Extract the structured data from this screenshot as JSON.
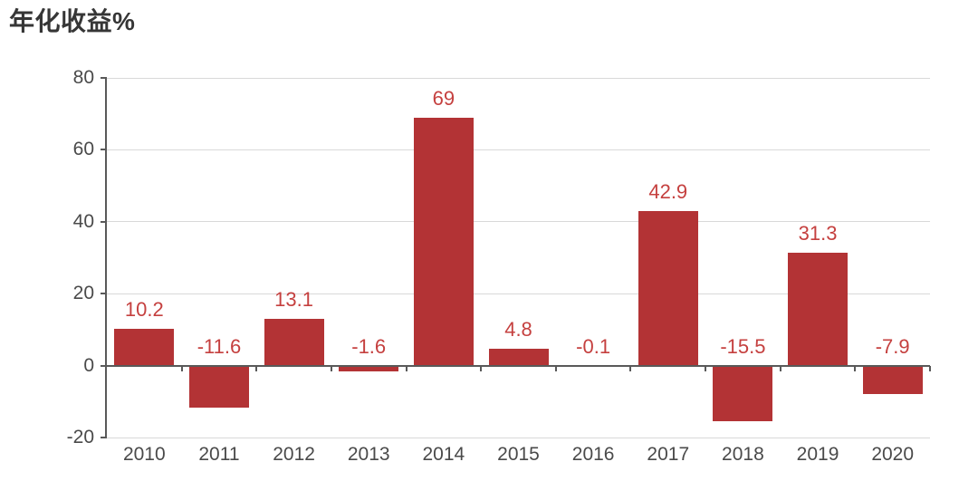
{
  "chart_data": {
    "type": "bar",
    "title": "年化收益%",
    "categories": [
      "2010",
      "2011",
      "2012",
      "2013",
      "2014",
      "2015",
      "2016",
      "2017",
      "2018",
      "2019",
      "2020"
    ],
    "values": [
      10.2,
      -11.6,
      13.1,
      -1.6,
      69,
      4.8,
      -0.1,
      42.9,
      -15.5,
      31.3,
      -7.9
    ],
    "value_labels": [
      "10.2",
      "-11.6",
      "13.1",
      "-1.6",
      "69",
      "4.8",
      "-0.1",
      "42.9",
      "-15.5",
      "31.3",
      "-7.9"
    ],
    "xlabel": "",
    "ylabel": "",
    "ylim": [
      -20,
      80
    ],
    "ytick_step": 20,
    "ytick_labels": [
      "80",
      "60",
      "40",
      "20",
      "0",
      "-20"
    ],
    "grid": true,
    "legend": false,
    "colors": {
      "bar": "#b33335",
      "value_label": "#c5403f",
      "axis": "#595959",
      "gridline": "#d9d9d9",
      "tick_label": "#4a4a4a",
      "title": "#363636",
      "background": "#ffffff"
    }
  }
}
